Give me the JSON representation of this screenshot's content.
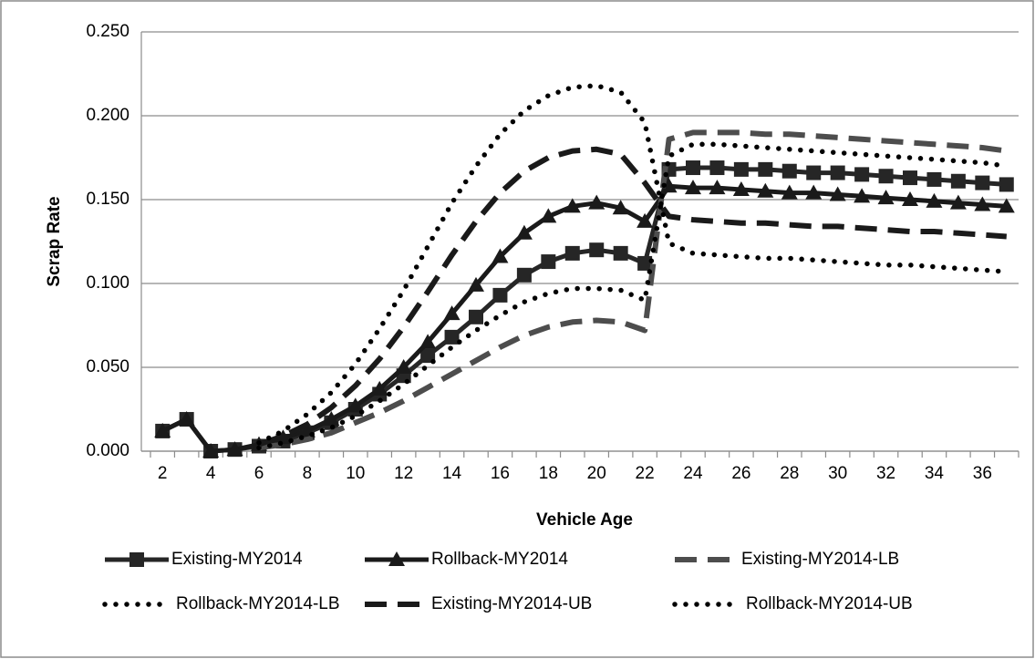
{
  "chart_data": {
    "type": "line",
    "x_label": "Vehicle Age",
    "y_label": "Scrap Rate",
    "categories": [
      2,
      null,
      4,
      null,
      6,
      null,
      8,
      null,
      10,
      null,
      12,
      null,
      14,
      null,
      16,
      null,
      18,
      null,
      20,
      null,
      22,
      null,
      24,
      null,
      26,
      null,
      28,
      null,
      30,
      null,
      32,
      null,
      34,
      null,
      36,
      null
    ],
    "ylim": [
      0,
      0.25
    ],
    "yticks": [
      {
        "value": 0,
        "label": "0.000"
      },
      {
        "value": 0.05,
        "label": "0.050"
      },
      {
        "value": 0.1,
        "label": "0.100"
      },
      {
        "value": 0.15,
        "label": "0.150"
      },
      {
        "value": 0.2,
        "label": "0.200"
      },
      {
        "value": 0.25,
        "label": "0.250"
      }
    ],
    "grid": true,
    "legend": "bottom",
    "series": [
      {
        "name": "Existing-MY2014",
        "color": "#262626",
        "line_style": "solid",
        "marker": "square",
        "values": [
          0.012,
          0.019,
          0.0,
          0.001,
          0.003,
          0.006,
          0.011,
          0.017,
          0.025,
          0.034,
          0.045,
          0.057,
          0.068,
          0.08,
          0.093,
          0.105,
          0.113,
          0.118,
          0.12,
          0.118,
          0.112,
          0.168,
          0.169,
          0.169,
          0.168,
          0.168,
          0.167,
          0.166,
          0.166,
          0.165,
          0.164,
          0.163,
          0.162,
          0.161,
          0.16,
          0.159
        ]
      },
      {
        "name": "Rollback-MY2014",
        "color": "#1a1a1a",
        "line_style": "solid",
        "marker": "triangle",
        "values": [
          0.012,
          0.019,
          0.0,
          0.001,
          0.004,
          0.008,
          0.012,
          0.019,
          0.027,
          0.037,
          0.05,
          0.065,
          0.082,
          0.099,
          0.116,
          0.13,
          0.14,
          0.146,
          0.148,
          0.145,
          0.137,
          0.158,
          0.157,
          0.157,
          0.156,
          0.155,
          0.154,
          0.154,
          0.153,
          0.152,
          0.151,
          0.15,
          0.149,
          0.148,
          0.147,
          0.146
        ]
      },
      {
        "name": "Existing-MY2014-LB",
        "color": "#4d4d4d",
        "line_style": "dashed",
        "marker": "none",
        "values": [
          null,
          null,
          null,
          null,
          0.002,
          0.004,
          0.007,
          0.011,
          0.017,
          0.023,
          0.03,
          0.038,
          0.046,
          0.054,
          0.062,
          0.069,
          0.074,
          0.077,
          0.078,
          0.077,
          0.072,
          0.186,
          0.19,
          0.19,
          0.19,
          0.189,
          0.189,
          0.188,
          0.187,
          0.186,
          0.185,
          0.184,
          0.183,
          0.182,
          0.181,
          0.179
        ]
      },
      {
        "name": "Rollback-MY2014-LB",
        "color": "#000000",
        "line_style": "dotted",
        "marker": "none",
        "values": [
          null,
          null,
          null,
          null,
          0.002,
          0.005,
          0.009,
          0.014,
          0.021,
          0.03,
          0.04,
          0.051,
          0.062,
          0.072,
          0.081,
          0.089,
          0.094,
          0.097,
          0.097,
          0.096,
          0.09,
          0.176,
          0.183,
          0.183,
          0.182,
          0.181,
          0.18,
          0.179,
          0.178,
          0.177,
          0.176,
          0.175,
          0.174,
          0.173,
          0.172,
          0.17
        ]
      },
      {
        "name": "Existing-MY2014-UB",
        "color": "#1a1a1a",
        "line_style": "dashed",
        "marker": "none",
        "values": [
          null,
          null,
          null,
          null,
          0.004,
          0.009,
          0.016,
          0.026,
          0.039,
          0.055,
          0.074,
          0.095,
          0.117,
          0.137,
          0.154,
          0.167,
          0.175,
          0.179,
          0.18,
          0.177,
          0.16,
          0.14,
          0.138,
          0.137,
          0.136,
          0.136,
          0.135,
          0.134,
          0.134,
          0.133,
          0.132,
          0.131,
          0.131,
          0.13,
          0.129,
          0.128
        ]
      },
      {
        "name": "Rollback-MY2014-UB",
        "color": "#000000",
        "line_style": "dotted",
        "marker": "none",
        "values": [
          null,
          null,
          null,
          null,
          0.005,
          0.012,
          0.022,
          0.035,
          0.052,
          0.073,
          0.096,
          0.122,
          0.148,
          0.17,
          0.189,
          0.203,
          0.212,
          0.217,
          0.218,
          0.214,
          0.196,
          0.124,
          0.118,
          0.117,
          0.116,
          0.115,
          0.115,
          0.114,
          0.113,
          0.112,
          0.111,
          0.111,
          0.11,
          0.109,
          0.108,
          0.107
        ]
      }
    ]
  }
}
